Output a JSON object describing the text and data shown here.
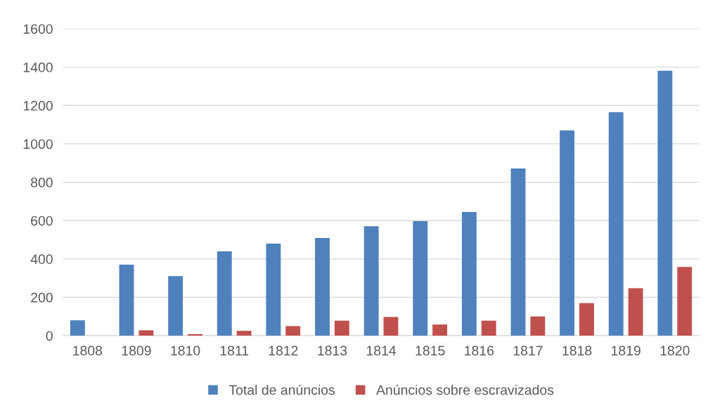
{
  "chart_data": {
    "type": "bar",
    "categories": [
      "1808",
      "1809",
      "1810",
      "1811",
      "1812",
      "1813",
      "1814",
      "1815",
      "1816",
      "1817",
      "1818",
      "1819",
      "1820"
    ],
    "series": [
      {
        "name": "Total de anúncios",
        "color": "#4f81bd",
        "values": [
          80,
          370,
          311,
          440,
          480,
          509,
          571,
          597,
          645,
          872,
          1070,
          1165,
          1381
        ]
      },
      {
        "name": "Anúncios sobre escravizados",
        "color": "#c0504d",
        "values": [
          0,
          28,
          8,
          25,
          50,
          78,
          98,
          58,
          78,
          100,
          170,
          248,
          358
        ]
      }
    ],
    "ylim": [
      0,
      1600
    ],
    "yticks": [
      0,
      200,
      400,
      600,
      800,
      1000,
      1200,
      1400,
      1600
    ],
    "grid": "y",
    "legend": "bottom"
  }
}
